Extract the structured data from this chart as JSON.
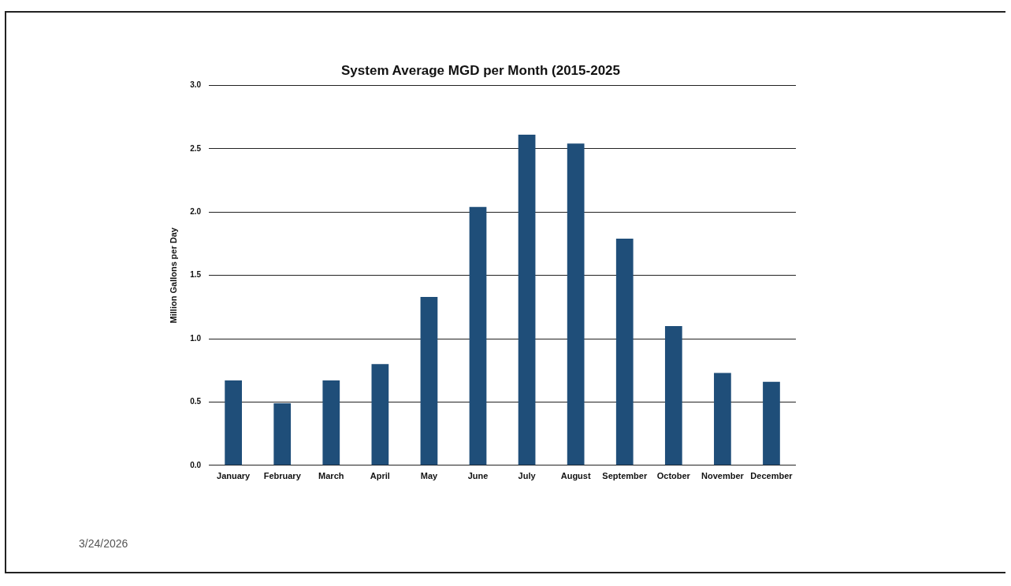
{
  "chart_data": {
    "type": "bar",
    "title": "System Average MGD per Month (2015-2025",
    "ylabel": "Million Gallons per Day",
    "categories": [
      "January",
      "February",
      "March",
      "April",
      "May",
      "June",
      "July",
      "August",
      "September",
      "October",
      "November",
      "December"
    ],
    "values": [
      0.67,
      0.49,
      0.67,
      0.8,
      1.33,
      2.04,
      2.61,
      2.54,
      1.79,
      1.1,
      0.73,
      0.66
    ],
    "color": "#1f4e79",
    "ylim": [
      0,
      3
    ],
    "yticks": [
      {
        "value": 0,
        "label": "0.0"
      },
      {
        "value": 0.5,
        "label": "0.5"
      },
      {
        "value": 1,
        "label": "1.0"
      },
      {
        "value": 1.5,
        "label": "1.5"
      },
      {
        "value": 2,
        "label": "2.0"
      },
      {
        "value": 2.5,
        "label": "2.5"
      },
      {
        "value": 3,
        "label": "3.0"
      }
    ],
    "grid": "y",
    "annotations": [
      "3/24/2026"
    ]
  }
}
